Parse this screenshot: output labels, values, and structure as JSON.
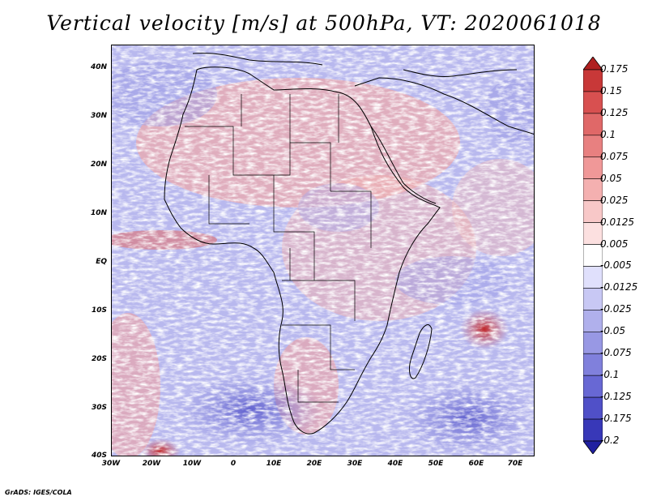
{
  "title": "Vertical velocity [m/s] at 500hPa, VT: 2020061018",
  "credit": "GrADS: IGES/COLA",
  "lat_ticks": [
    "40N",
    "30N",
    "20N",
    "10N",
    "EQ",
    "10S",
    "20S",
    "30S",
    "40S"
  ],
  "lon_ticks": [
    "30W",
    "20W",
    "10W",
    "0",
    "10E",
    "20E",
    "30E",
    "40E",
    "50E",
    "60E",
    "70E"
  ],
  "colorbar": {
    "labels": [
      "0.175",
      "0.15",
      "0.125",
      "0.1",
      "0.075",
      "0.05",
      "0.025",
      "0.0125",
      "0.005",
      "-0.005",
      "-0.0125",
      "-0.025",
      "-0.05",
      "-0.075",
      "-0.1",
      "-0.125",
      "-0.175",
      "-0.2"
    ],
    "colors": [
      "#b02020",
      "#c83838",
      "#d85050",
      "#e06868",
      "#e88080",
      "#f09898",
      "#f4b0b0",
      "#f8c8c8",
      "#fce0e0",
      "#ffffff",
      "#e0e0fc",
      "#c8c8f4",
      "#b0b0ec",
      "#9898e4",
      "#8080dc",
      "#6868d4",
      "#5050c8",
      "#3838b8",
      "#2020a0"
    ]
  }
}
